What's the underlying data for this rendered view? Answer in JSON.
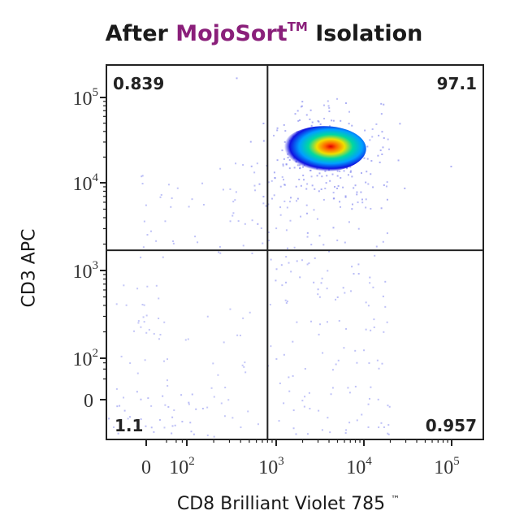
{
  "title": {
    "prefix": "After",
    "brand": "MojoSort",
    "tm": "TM",
    "suffix": "Isolation",
    "brand_color": "#8a1f7a"
  },
  "chart_data": {
    "type": "scatter",
    "subtype": "flow-cytometry-density-dot-plot",
    "xlabel": "CD8 Brilliant Violet 785",
    "xlabel_tm": "™",
    "ylabel": "CD3 APC",
    "x_scale": "biexponential",
    "y_scale": "biexponential",
    "x_ticks": [
      {
        "value": 0,
        "label": "0"
      },
      {
        "value": 100,
        "label": "10",
        "exp": "2"
      },
      {
        "value": 1000,
        "label": "10",
        "exp": "3"
      },
      {
        "value": 10000,
        "label": "10",
        "exp": "4"
      },
      {
        "value": 100000,
        "label": "10",
        "exp": "5"
      }
    ],
    "y_ticks": [
      {
        "value": 0,
        "label": "0"
      },
      {
        "value": 100,
        "label": "10",
        "exp": "2"
      },
      {
        "value": 1000,
        "label": "10",
        "exp": "3"
      },
      {
        "value": 10000,
        "label": "10",
        "exp": "4"
      },
      {
        "value": 100000,
        "label": "10",
        "exp": "5"
      }
    ],
    "quadrant_gates": {
      "x": 800,
      "y": 1700
    },
    "quadrants": [
      {
        "position": "top-left",
        "percent": "0.839"
      },
      {
        "position": "top-right",
        "percent": "97.1"
      },
      {
        "position": "bottom-left",
        "percent": "1.1"
      },
      {
        "position": "bottom-right",
        "percent": "0.957"
      }
    ],
    "main_population": {
      "x_center": 3500,
      "y_center": 25000
    },
    "density_colors": [
      "#1010e0",
      "#00a0ff",
      "#00d8a0",
      "#f0e000",
      "#ff6000",
      "#e00000"
    ],
    "dot_color": "#8a8ff0",
    "grid": false,
    "legend": "none"
  }
}
